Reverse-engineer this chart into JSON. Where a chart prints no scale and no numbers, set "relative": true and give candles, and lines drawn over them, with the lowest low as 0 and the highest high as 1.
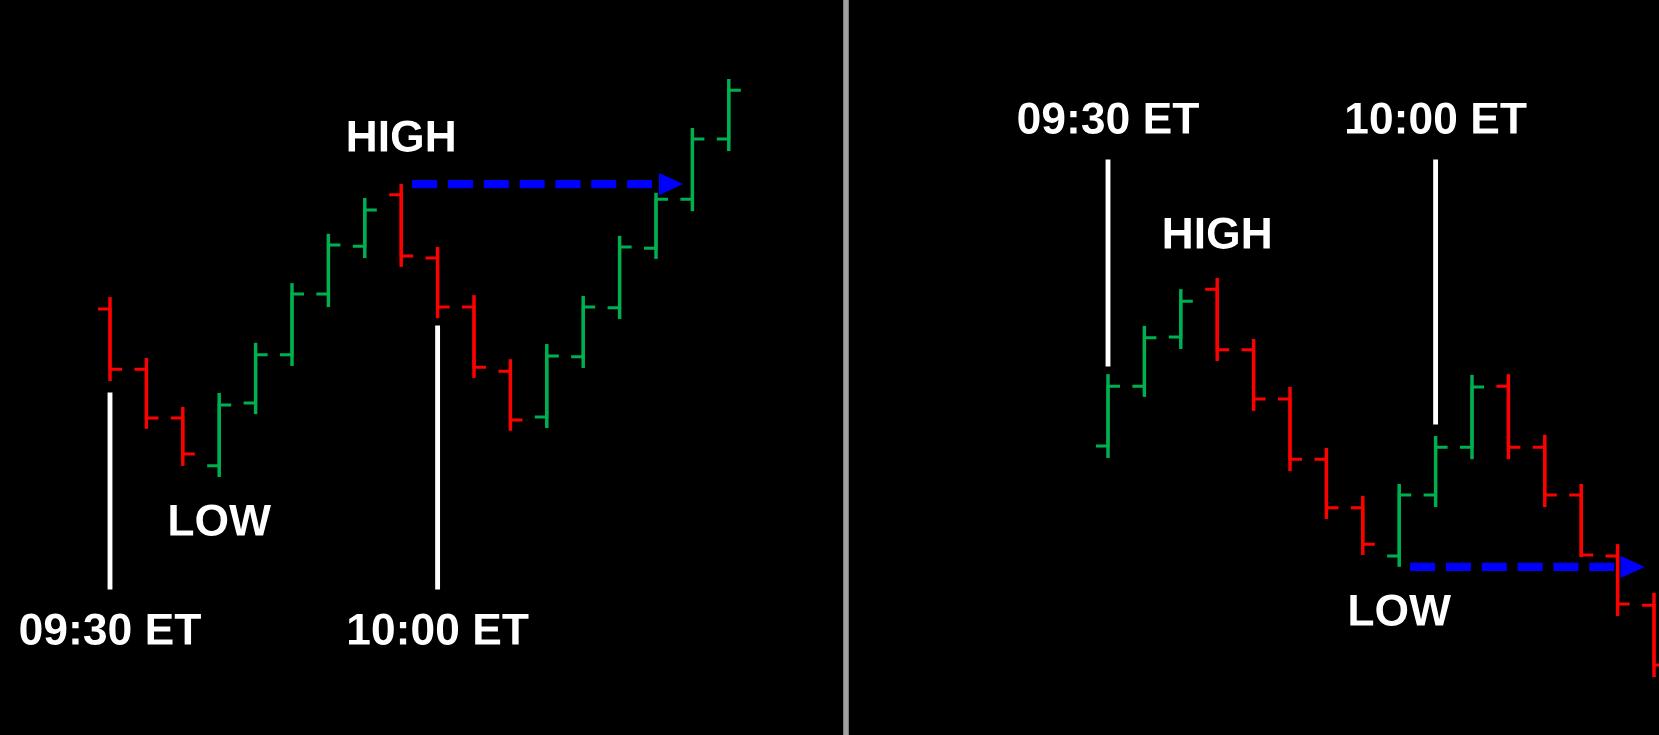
{
  "chart_data": [
    {
      "type": "candlestick",
      "relative": true,
      "categories": [
        null,
        null,
        null,
        null,
        null,
        null,
        null,
        null,
        null,
        null,
        null,
        null,
        null,
        null,
        null,
        null,
        null,
        null
      ],
      "ohlc": [
        [
          0.422,
          0.452,
          0.241,
          0.271
        ],
        [
          0.271,
          0.299,
          0.121,
          0.148
        ],
        [
          0.148,
          0.176,
          0.028,
          0.058
        ],
        [
          0.028,
          0.211,
          0,
          0.181
        ],
        [
          0.186,
          0.337,
          0.158,
          0.307
        ],
        [
          0.307,
          0.487,
          0.279,
          0.46
        ],
        [
          0.46,
          0.611,
          0.427,
          0.583
        ],
        [
          0.58,
          0.701,
          0.55,
          0.671
        ],
        [
          0.709,
          0.736,
          0.528,
          0.555
        ],
        [
          0.55,
          0.578,
          0.399,
          0.427
        ],
        [
          0.427,
          0.457,
          0.249,
          0.276
        ],
        [
          0.266,
          0.296,
          0.116,
          0.143
        ],
        [
          0.151,
          0.334,
          0.123,
          0.304
        ],
        [
          0.302,
          0.455,
          0.274,
          0.427
        ],
        [
          0.425,
          0.606,
          0.397,
          0.578
        ],
        [
          0.575,
          0.714,
          0.548,
          0.698
        ],
        [
          0.698,
          0.877,
          0.668,
          0.849
        ],
        [
          0.849,
          1,
          0.819,
          0.972
        ]
      ],
      "colors": [
        "#ff0000",
        "#ff0000",
        "#ff0000",
        "#00b050",
        "#00b050",
        "#00b050",
        "#00b050",
        "#00b050",
        "#ff0000",
        "#ff0000",
        "#ff0000",
        "#ff0000",
        "#00b050",
        "#00b050",
        "#00b050",
        "#00b050",
        "#00b050",
        "#00b050"
      ],
      "annotations": [
        "09:30 ET",
        "10:00 ET",
        "HIGH",
        "LOW"
      ]
    },
    {
      "type": "candlestick",
      "relative": true,
      "categories": [
        null,
        null,
        null,
        null,
        null,
        null,
        null,
        null,
        null,
        null,
        null,
        null,
        null,
        null,
        null,
        null
      ],
      "ohlc": [
        [
          0.579,
          0.759,
          0.549,
          0.729
        ],
        [
          0.729,
          0.88,
          0.702,
          0.85
        ],
        [
          0.852,
          0.972,
          0.822,
          0.942
        ],
        [
          0.972,
          1,
          0.792,
          0.82
        ],
        [
          0.82,
          0.847,
          0.667,
          0.697
        ],
        [
          0.697,
          0.727,
          0.516,
          0.546
        ],
        [
          0.546,
          0.574,
          0.396,
          0.424
        ],
        [
          0.424,
          0.454,
          0.306,
          0.333
        ],
        [
          0.303,
          0.484,
          0.276,
          0.456
        ],
        [
          0.456,
          0.604,
          0.426,
          0.576
        ],
        [
          0.576,
          0.757,
          0.546,
          0.727
        ],
        [
          0.729,
          0.759,
          0.546,
          0.576
        ],
        [
          0.576,
          0.607,
          0.426,
          0.456
        ],
        [
          0.456,
          0.484,
          0.301,
          0.306
        ],
        [
          0.303,
          0.333,
          0.153,
          0.183
        ],
        [
          0.18,
          0.211,
          0,
          0.03
        ]
      ],
      "colors": [
        "#00b050",
        "#00b050",
        "#00b050",
        "#ff0000",
        "#ff0000",
        "#ff0000",
        "#ff0000",
        "#ff0000",
        "#00b050",
        "#00b050",
        "#00b050",
        "#ff0000",
        "#ff0000",
        "#ff0000",
        "#ff0000",
        "#ff0000"
      ],
      "annotations": [
        "09:30 ET",
        "10:00 ET",
        "HIGH",
        "LOW"
      ]
    }
  ]
}
